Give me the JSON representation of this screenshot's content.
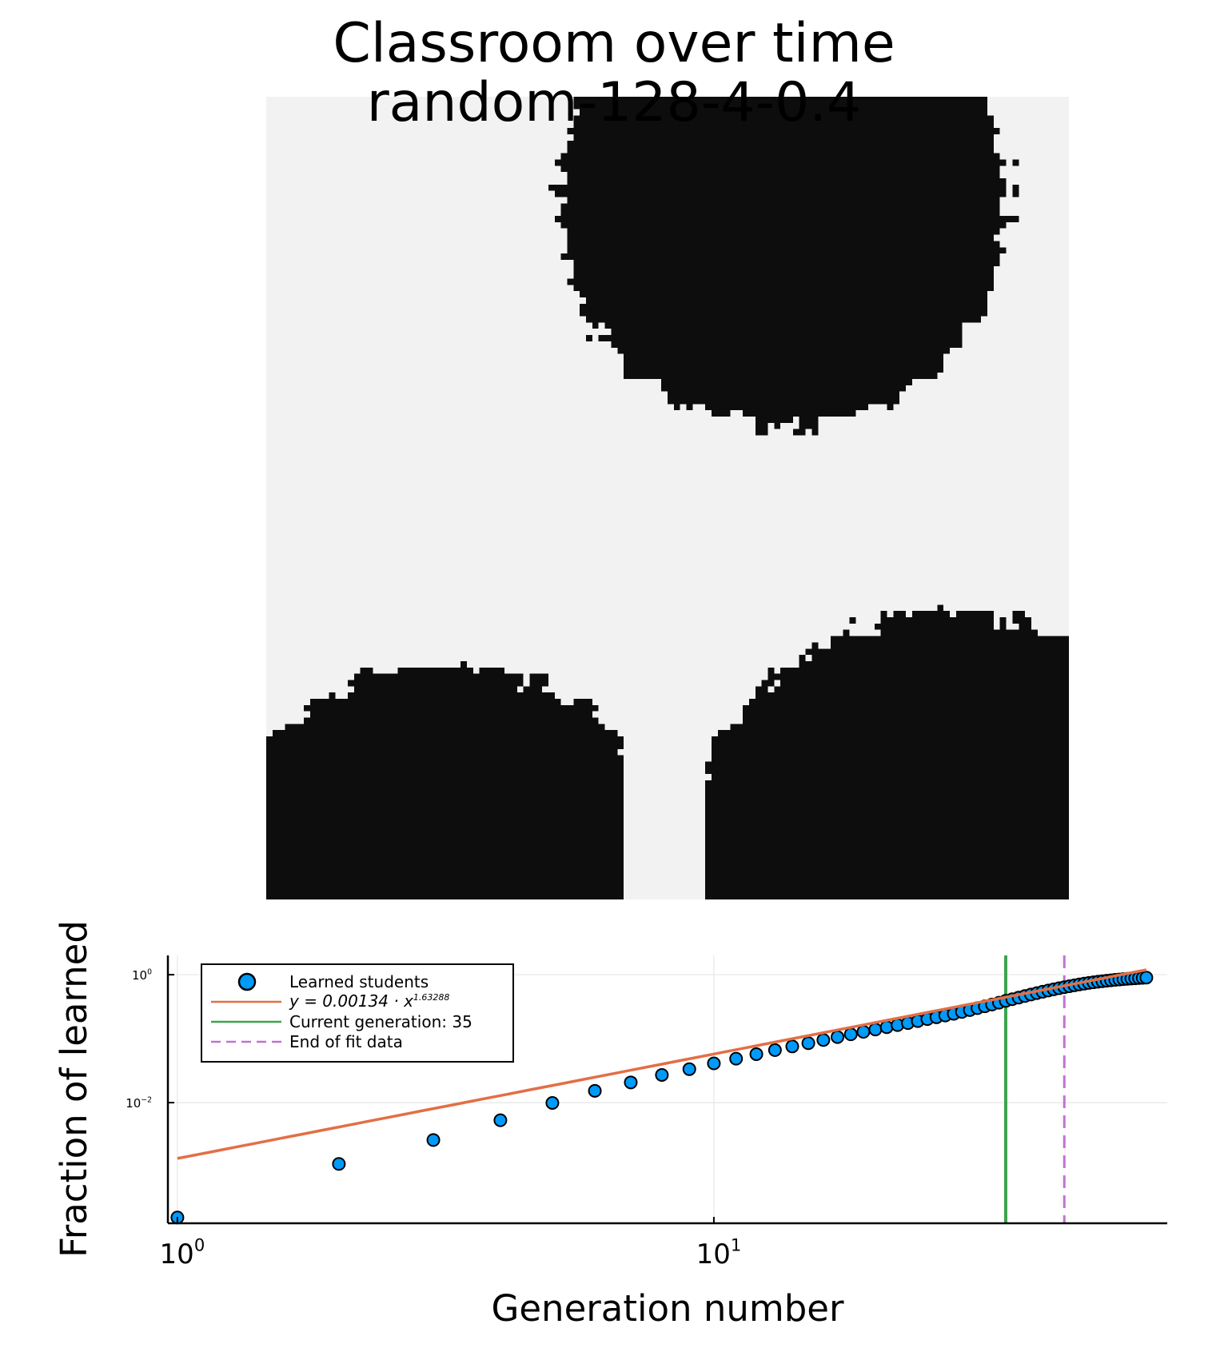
{
  "chart_data": [
    {
      "type": "heatmap",
      "title": "Classroom over time",
      "subtitle": "random-128-4-0.4",
      "grid_size": 128,
      "colors": {
        "learned": "#0d0d0d",
        "not_learned": "#f2f2f2"
      }
    },
    {
      "type": "scatter",
      "xlabel": "Generation number",
      "ylabel": "Fraction of learned",
      "xscale": "log",
      "yscale": "log",
      "xlim": [
        0.96,
        70
      ],
      "ylim": [
        0.00013,
        2.0
      ],
      "xticks": [
        {
          "value": 1,
          "base": "10",
          "exp": "0"
        },
        {
          "value": 10,
          "base": "10",
          "exp": "1"
        }
      ],
      "yticks": [
        {
          "value": 1,
          "base": "10",
          "exp": "0"
        },
        {
          "value": 0.01,
          "base": "10",
          "exp": "−2"
        }
      ],
      "grid": true,
      "legend_position": "top-left",
      "series": [
        {
          "name": "Learned students",
          "kind": "scatter",
          "color": "#009af9",
          "x": [
            1,
            2,
            3,
            4,
            5,
            6,
            7,
            8,
            9,
            10,
            11,
            12,
            13,
            14,
            15,
            16,
            17,
            18,
            19,
            20,
            21,
            22,
            23,
            24,
            25,
            26,
            27,
            28,
            29,
            30,
            31,
            32,
            33,
            34,
            35,
            36,
            37,
            38,
            39,
            40,
            41,
            42,
            43,
            44,
            45,
            46,
            47,
            48,
            49,
            50,
            51,
            52,
            53,
            54,
            55,
            56,
            57,
            58,
            59,
            60,
            61,
            62,
            63,
            64
          ],
          "y": [
            0.00016,
            0.0011,
            0.0026,
            0.0053,
            0.0099,
            0.0153,
            0.0207,
            0.0271,
            0.0334,
            0.0411,
            0.0487,
            0.0573,
            0.0662,
            0.0756,
            0.0849,
            0.0953,
            0.106,
            0.117,
            0.128,
            0.139,
            0.151,
            0.163,
            0.175,
            0.188,
            0.202,
            0.216,
            0.23,
            0.245,
            0.262,
            0.28,
            0.3,
            0.32,
            0.342,
            0.365,
            0.39,
            0.414,
            0.439,
            0.464,
            0.49,
            0.515,
            0.541,
            0.566,
            0.59,
            0.614,
            0.638,
            0.661,
            0.683,
            0.704,
            0.724,
            0.743,
            0.76,
            0.776,
            0.791,
            0.805,
            0.818,
            0.83,
            0.841,
            0.852,
            0.862,
            0.871,
            0.879,
            0.887,
            0.894,
            0.901
          ]
        },
        {
          "name": "y = 0.00134 · x^1.63288",
          "name_base": "y = 0.00134 · x",
          "name_exp": "1.63288",
          "kind": "line",
          "color": "#e26f46",
          "coef": 0.00134,
          "exponent": 1.63288,
          "x_range": [
            1,
            64
          ]
        },
        {
          "name": "Current generation: 35",
          "kind": "vline",
          "color": "#3da44d",
          "x": 35
        },
        {
          "name": "End of fit data",
          "kind": "vline-dashed",
          "color": "#c271d2",
          "x": 45
        }
      ]
    }
  ]
}
